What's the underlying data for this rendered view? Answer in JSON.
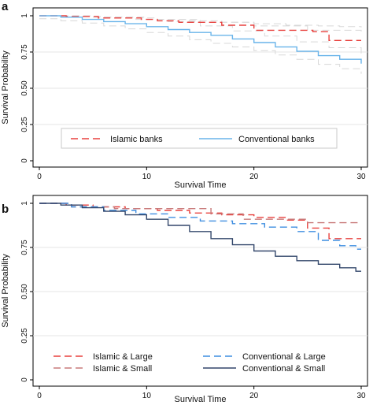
{
  "chart_data": [
    {
      "type": "line",
      "panel_label": "a",
      "xlabel": "Survival Time",
      "ylabel": "Survival Probability",
      "xlim": [
        0,
        30
      ],
      "ylim": [
        0,
        1
      ],
      "xticks": [
        "0",
        "10",
        "20",
        "30"
      ],
      "yticks": [
        "0",
        "0.25",
        "0.50",
        "0.75",
        "1"
      ],
      "grid": "horizontal",
      "legend_position": "bottom",
      "series": [
        {
          "name": "Islamic banks",
          "color": "#e8413e",
          "style": "dashed",
          "step": true,
          "x": [
            0,
            2.5,
            5.5,
            9.5,
            11,
            13,
            17,
            20,
            25.5,
            27,
            30
          ],
          "y": [
            1,
            0.995,
            0.985,
            0.975,
            0.965,
            0.955,
            0.935,
            0.9,
            0.89,
            0.83,
            0.83
          ]
        },
        {
          "name": "Conventional banks",
          "color": "#69b4ea",
          "style": "solid",
          "step": true,
          "x": [
            0,
            2,
            4,
            6,
            8,
            10,
            12,
            14,
            16,
            18,
            20,
            22,
            24,
            26,
            28,
            30
          ],
          "y": [
            1,
            0.99,
            0.975,
            0.96,
            0.945,
            0.925,
            0.905,
            0.885,
            0.865,
            0.84,
            0.815,
            0.785,
            0.755,
            0.725,
            0.7,
            0.67
          ]
        },
        {
          "name": "",
          "color": "#d8d8d8",
          "style": "dashed",
          "step": true,
          "x": [
            0,
            5,
            8,
            11,
            14,
            17,
            20,
            23,
            26,
            28,
            30
          ],
          "y": [
            1,
            0.99,
            0.985,
            0.975,
            0.965,
            0.955,
            0.945,
            0.935,
            0.93,
            0.925,
            0.92
          ]
        },
        {
          "name": "",
          "color": "#d8d8d8",
          "style": "dashed",
          "step": true,
          "x": [
            0,
            2,
            4,
            6,
            8,
            10,
            12,
            14,
            16,
            18,
            20,
            22,
            24,
            26,
            28,
            30
          ],
          "y": [
            0.98,
            0.965,
            0.95,
            0.93,
            0.91,
            0.885,
            0.86,
            0.835,
            0.81,
            0.785,
            0.76,
            0.73,
            0.7,
            0.665,
            0.635,
            0.6
          ]
        },
        {
          "name": "",
          "color": "#d8d8d8",
          "style": "dashed",
          "step": true,
          "x": [
            0,
            5,
            10,
            15,
            20,
            25,
            30
          ],
          "y": [
            1,
            0.99,
            0.975,
            0.955,
            0.93,
            0.9,
            0.875
          ]
        },
        {
          "name": "",
          "color": "#d8d8d8",
          "style": "dashed",
          "step": true,
          "x": [
            0,
            3,
            6,
            9,
            12,
            15,
            18,
            21,
            24,
            27,
            30
          ],
          "y": [
            1,
            0.995,
            0.99,
            0.975,
            0.96,
            0.93,
            0.895,
            0.86,
            0.82,
            0.78,
            0.74
          ]
        }
      ],
      "legend": [
        {
          "label": "Islamic banks",
          "color": "#e8413e",
          "style": "dashed"
        },
        {
          "label": "Conventional banks",
          "color": "#69b4ea",
          "style": "solid"
        }
      ]
    },
    {
      "type": "line",
      "panel_label": "b",
      "xlabel": "Survival Time",
      "ylabel": "Survival Probability",
      "xlim": [
        0,
        30
      ],
      "ylim": [
        0,
        1
      ],
      "xticks": [
        "0",
        "10",
        "20",
        "30"
      ],
      "yticks": [
        "0",
        "0.25",
        "0.50",
        "0.75",
        "1"
      ],
      "grid": "horizontal",
      "legend_position": "bottom",
      "series": [
        {
          "name": "Islamic & Large",
          "color": "#e8413e",
          "style": "dashed",
          "step": true,
          "x": [
            0,
            2.5,
            5,
            8,
            11,
            14,
            17,
            20,
            23,
            25,
            27,
            30
          ],
          "y": [
            1,
            0.99,
            0.98,
            0.97,
            0.96,
            0.945,
            0.935,
            0.92,
            0.905,
            0.86,
            0.8,
            0.8
          ]
        },
        {
          "name": "Islamic & Small",
          "color": "#c87a7a",
          "style": "dashed",
          "step": true,
          "x": [
            0,
            3,
            7,
            16,
            19,
            25,
            30
          ],
          "y": [
            1,
            0.98,
            0.97,
            0.94,
            0.91,
            0.89,
            0.89
          ]
        },
        {
          "name": "Conventional & Large",
          "color": "#3d8de0",
          "style": "dashed",
          "step": true,
          "x": [
            0,
            3,
            6,
            9,
            12,
            15,
            18,
            21,
            24,
            26,
            28,
            29.5,
            30
          ],
          "y": [
            1,
            0.98,
            0.96,
            0.94,
            0.92,
            0.9,
            0.885,
            0.865,
            0.84,
            0.79,
            0.76,
            0.74,
            0.74
          ]
        },
        {
          "name": "Conventional & Small",
          "color": "#33476b",
          "style": "solid",
          "step": true,
          "x": [
            0,
            2,
            4,
            6,
            8,
            10,
            12,
            14,
            16,
            18,
            20,
            22,
            24,
            26,
            28,
            29.5,
            30
          ],
          "y": [
            1,
            0.99,
            0.975,
            0.955,
            0.935,
            0.91,
            0.875,
            0.84,
            0.8,
            0.765,
            0.73,
            0.7,
            0.675,
            0.655,
            0.635,
            0.615,
            0.615
          ]
        }
      ],
      "legend": [
        {
          "label": "Islamic & Large",
          "color": "#e8413e",
          "style": "dashed"
        },
        {
          "label": "Conventional & Large",
          "color": "#3d8de0",
          "style": "dashed"
        },
        {
          "label": "Islamic & Small",
          "color": "#c87a7a",
          "style": "dashed"
        },
        {
          "label": "Conventional & Small",
          "color": "#33476b",
          "style": "solid"
        }
      ]
    }
  ]
}
